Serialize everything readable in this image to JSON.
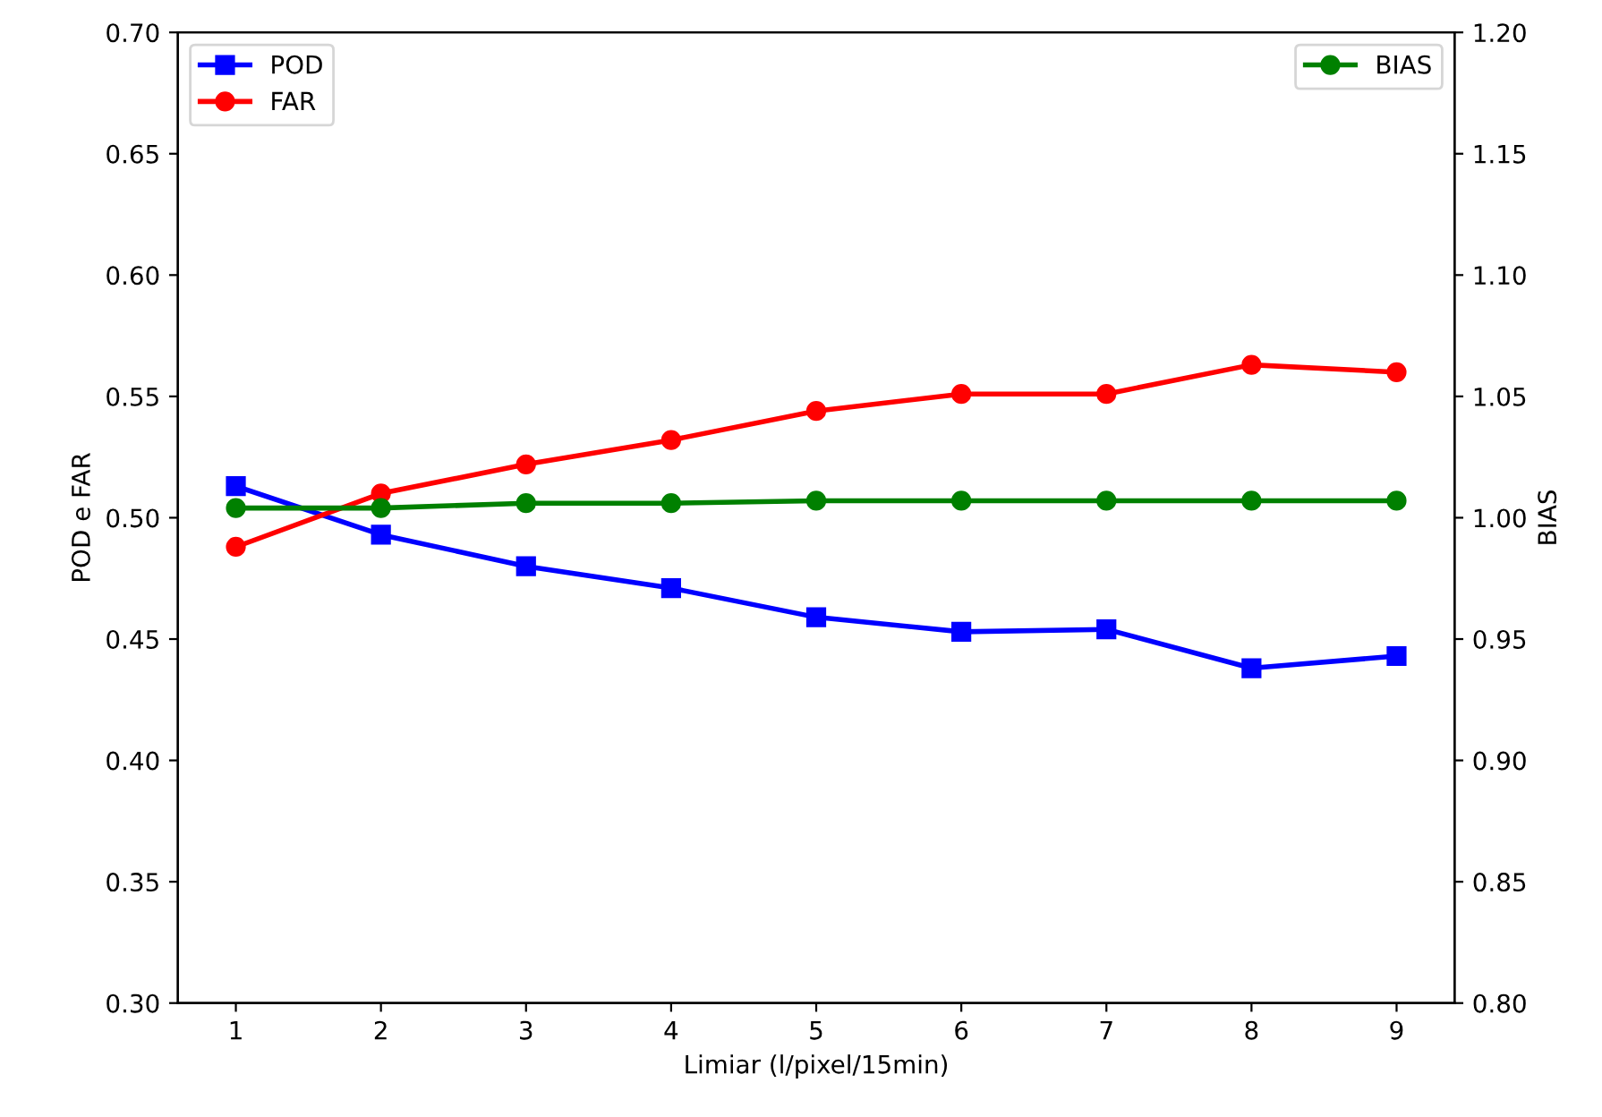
{
  "chart_data": {
    "type": "line",
    "xlabel": "Limiar (l/pixel/15min)",
    "ylabel": "POD e FAR",
    "y2label": "BIAS",
    "x": [
      1,
      2,
      3,
      4,
      5,
      6,
      7,
      8,
      9
    ],
    "series": [
      {
        "name": "POD",
        "color": "#0000ff",
        "marker": "square",
        "values": [
          0.513,
          0.493,
          0.48,
          0.471,
          0.459,
          0.453,
          0.454,
          0.438,
          0.443
        ]
      },
      {
        "name": "FAR",
        "color": "#ff0000",
        "marker": "circle",
        "values": [
          0.488,
          0.51,
          0.522,
          0.532,
          0.544,
          0.551,
          0.551,
          0.563,
          0.56
        ]
      },
      {
        "name": "BIAS",
        "color": "#008000",
        "marker": "circle",
        "axis": "y2",
        "values": [
          1.004,
          1.004,
          1.006,
          1.006,
          1.007,
          1.007,
          1.007,
          1.007,
          1.007
        ]
      }
    ],
    "xlim": [
      0.6,
      9.4
    ],
    "xticks": [
      1,
      2,
      3,
      4,
      5,
      6,
      7,
      8,
      9
    ],
    "ylim": [
      0.3,
      0.7
    ],
    "yticks": [
      {
        "value": 0.3,
        "label": "0.30"
      },
      {
        "value": 0.35,
        "label": "0.35"
      },
      {
        "value": 0.4,
        "label": "0.40"
      },
      {
        "value": 0.45,
        "label": "0.45"
      },
      {
        "value": 0.5,
        "label": "0.50"
      },
      {
        "value": 0.55,
        "label": "0.55"
      },
      {
        "value": 0.6,
        "label": "0.60"
      },
      {
        "value": 0.65,
        "label": "0.65"
      },
      {
        "value": 0.7,
        "label": "0.70"
      }
    ],
    "y2lim": [
      0.8,
      1.2
    ],
    "y2ticks": [
      {
        "value": 0.8,
        "label": "0.80"
      },
      {
        "value": 0.85,
        "label": "0.85"
      },
      {
        "value": 0.9,
        "label": "0.90"
      },
      {
        "value": 0.95,
        "label": "0.95"
      },
      {
        "value": 1.0,
        "label": "1.00"
      },
      {
        "value": 1.05,
        "label": "1.05"
      },
      {
        "value": 1.1,
        "label": "1.10"
      },
      {
        "value": 1.15,
        "label": "1.15"
      },
      {
        "value": 1.2,
        "label": "1.20"
      }
    ],
    "legend": "top left",
    "grid": false,
    "line_style": "solid"
  }
}
